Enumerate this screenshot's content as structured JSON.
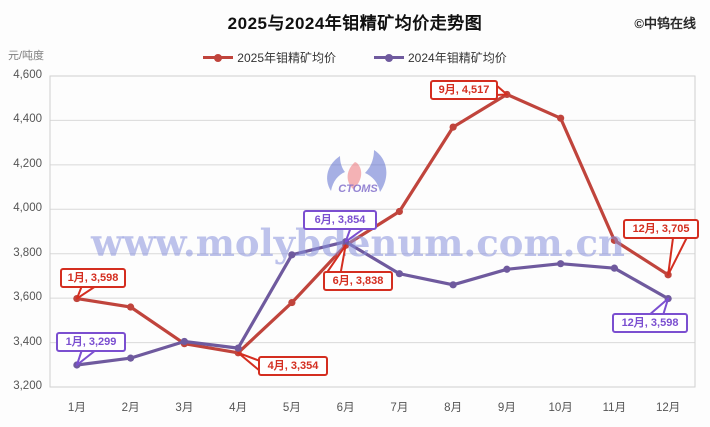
{
  "header": {
    "title": "2025与2024年钼精矿均价走势图",
    "copyright": "©中钨在线"
  },
  "chart_data": {
    "type": "line",
    "title": "2025与2024年钼精矿均价走势图",
    "ylabel": "元/吨度",
    "xlabel": "",
    "categories": [
      "1月",
      "2月",
      "3月",
      "4月",
      "5月",
      "6月",
      "7月",
      "8月",
      "9月",
      "10月",
      "11月",
      "12月"
    ],
    "series": [
      {
        "name": "2025年钼精矿均价",
        "color": "#c0443c",
        "callout_color": "#d42e20",
        "values": [
          3598,
          3560,
          3395,
          3354,
          3580,
          3838,
          3990,
          4370,
          4517,
          4410,
          3860,
          3705
        ]
      },
      {
        "name": "2024年钼精矿均价",
        "color": "#6f5a9e",
        "callout_color": "#7b4fd0",
        "values": [
          3299,
          3330,
          3405,
          3375,
          3795,
          3854,
          3710,
          3660,
          3730,
          3755,
          3735,
          3598
        ]
      }
    ],
    "ylim": [
      3200,
      4600
    ],
    "ytick_step": 200,
    "yticks": [
      "3,200",
      "3,400",
      "3,600",
      "3,800",
      "4,000",
      "4,200",
      "4,400",
      "4,600"
    ],
    "grid": "horizontal",
    "legend_position": "top",
    "annotations": [
      {
        "series": 0,
        "index": 0,
        "label": "1月, 3,598"
      },
      {
        "series": 1,
        "index": 0,
        "label": "1月, 3,299"
      },
      {
        "series": 0,
        "index": 3,
        "label": "4月, 3,354"
      },
      {
        "series": 1,
        "index": 5,
        "label": "6月, 3,854"
      },
      {
        "series": 0,
        "index": 5,
        "label": "6月, 3,838"
      },
      {
        "series": 0,
        "index": 8,
        "label": "9月, 4,517"
      },
      {
        "series": 0,
        "index": 11,
        "label": "12月, 3,705"
      },
      {
        "series": 1,
        "index": 11,
        "label": "12月, 3,598"
      }
    ],
    "watermark": {
      "text": "www.molybdenum.com.cn",
      "logo_text": "CTOMS"
    }
  }
}
